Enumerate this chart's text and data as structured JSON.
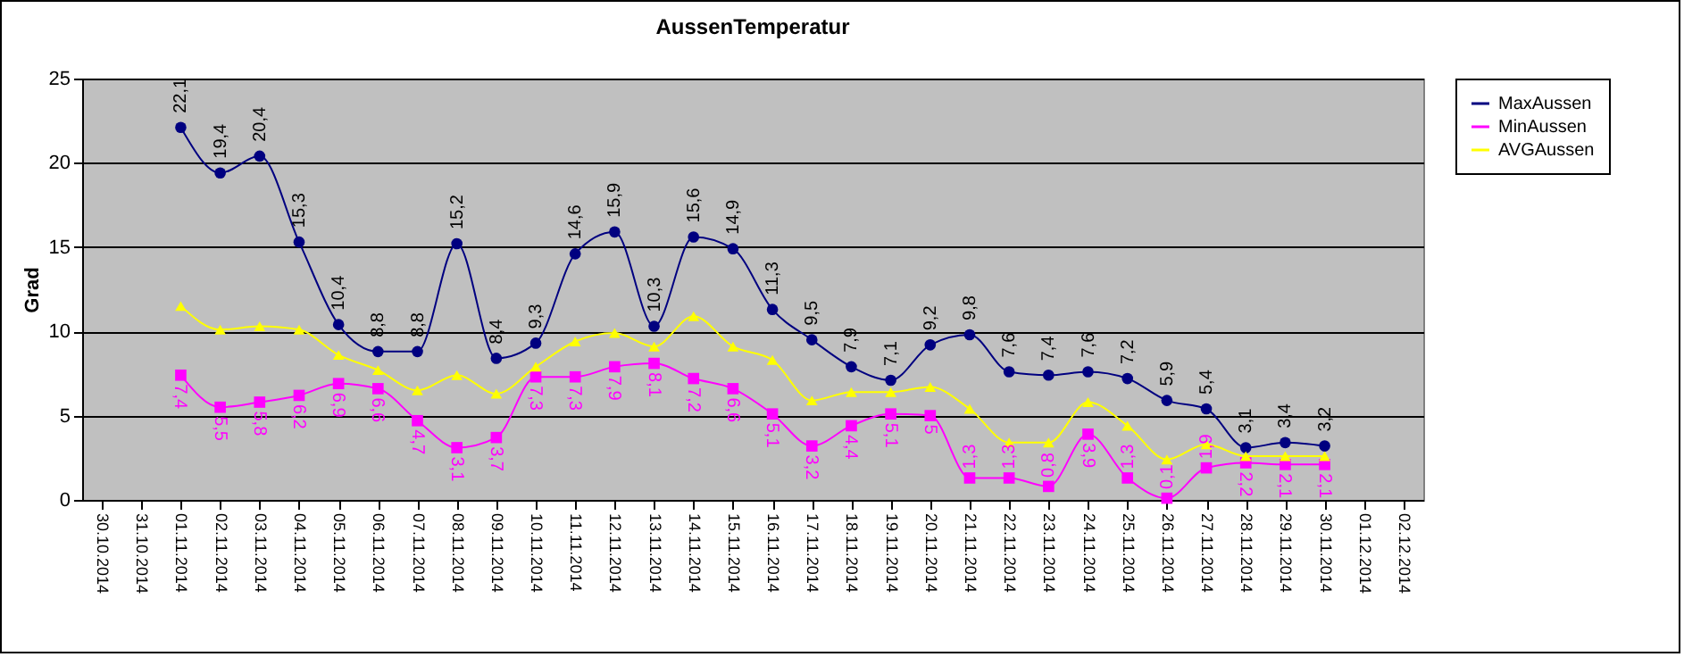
{
  "chart_data": {
    "type": "line",
    "title": "AussenTemperatur",
    "ylabel": "Grad",
    "categories": [
      "30.10.2014",
      "31.10.2014",
      "01.11.2014",
      "02.11.2014",
      "03.11.2014",
      "04.11.2014",
      "05.11.2014",
      "06.11.2014",
      "07.11.2014",
      "08.11.2014",
      "09.11.2014",
      "10.11.2014",
      "11.11.2014",
      "12.11.2014",
      "13.11.2014",
      "14.11.2014",
      "15.11.2014",
      "16.11.2014",
      "17.11.2014",
      "18.11.2014",
      "19.11.2014",
      "20.11.2014",
      "21.11.2014",
      "22.11.2014",
      "23.11.2014",
      "24.11.2014",
      "25.11.2014",
      "26.11.2014",
      "27.11.2014",
      "28.11.2014",
      "29.11.2014",
      "30.11.2014",
      "01.12.2014",
      "02.12.2014"
    ],
    "series": [
      {
        "name": "MaxAussen",
        "color": "#000080",
        "marker": "circle",
        "values": [
          null,
          null,
          22.1,
          19.4,
          20.4,
          15.3,
          10.4,
          8.8,
          8.8,
          15.2,
          8.4,
          9.3,
          14.6,
          15.9,
          10.3,
          15.6,
          14.9,
          11.3,
          9.5,
          7.9,
          7.1,
          9.2,
          9.8,
          7.6,
          7.4,
          7.6,
          7.2,
          5.9,
          5.4,
          3.1,
          3.4,
          3.2,
          null,
          null
        ],
        "value_labels": [
          null,
          null,
          "22,1",
          "19,4",
          "20,4",
          "15,3",
          "10,4",
          "8,8",
          "8,8",
          "15,2",
          "8,4",
          "9,3",
          "14,6",
          "15,9",
          "10,3",
          "15,6",
          "14,9",
          "11,3",
          "9,5",
          "7,9",
          "7,1",
          "9,2",
          "9,8",
          "7,6",
          "7,4",
          "7,6",
          "7,2",
          "5,9",
          "5,4",
          "3,1",
          "3,4",
          "3,2",
          null,
          null
        ]
      },
      {
        "name": "MinAussen",
        "color": "#ff00ff",
        "marker": "square",
        "values": [
          null,
          null,
          7.4,
          5.5,
          5.8,
          6.2,
          6.9,
          6.6,
          4.7,
          3.1,
          3.7,
          7.3,
          7.3,
          7.9,
          8.1,
          7.2,
          6.6,
          5.1,
          3.2,
          4.4,
          5.1,
          5,
          1.3,
          1.3,
          0.8,
          3.9,
          1.3,
          0.1,
          1.9,
          2.2,
          2.1,
          2.1,
          null,
          null
        ],
        "value_labels": [
          null,
          null,
          "7,4",
          "5,5",
          "5,8",
          "6,2",
          "6,9",
          "6,6",
          "4,7",
          "3,1",
          "3,7",
          "7,3",
          "7,3",
          "7,9",
          "8,1",
          "7,2",
          "6,6",
          "5,1",
          "3,2",
          "4,4",
          "5,1",
          "5",
          "1,3",
          "1,3",
          "0,8",
          "3,9",
          "1,3",
          "0,1",
          "1,9",
          "2,2",
          "2,1",
          "2,1",
          null,
          null
        ]
      },
      {
        "name": "AVGAussen",
        "color": "#ffff00",
        "marker": "triangle",
        "values": [
          null,
          null,
          11.5,
          10.1,
          10.3,
          10.1,
          8.6,
          7.7,
          6.5,
          7.4,
          6.3,
          7.9,
          9.4,
          9.9,
          9.1,
          10.9,
          9.1,
          8.3,
          5.9,
          6.4,
          6.4,
          6.7,
          5.4,
          3.4,
          3.4,
          5.8,
          4.4,
          2.4,
          3.3,
          2.6,
          2.6,
          2.6,
          null,
          null
        ]
      }
    ],
    "ylim": [
      0,
      25
    ],
    "yticks": [
      0,
      5,
      10,
      15,
      20,
      25
    ],
    "grid": "y",
    "legend": "right"
  }
}
